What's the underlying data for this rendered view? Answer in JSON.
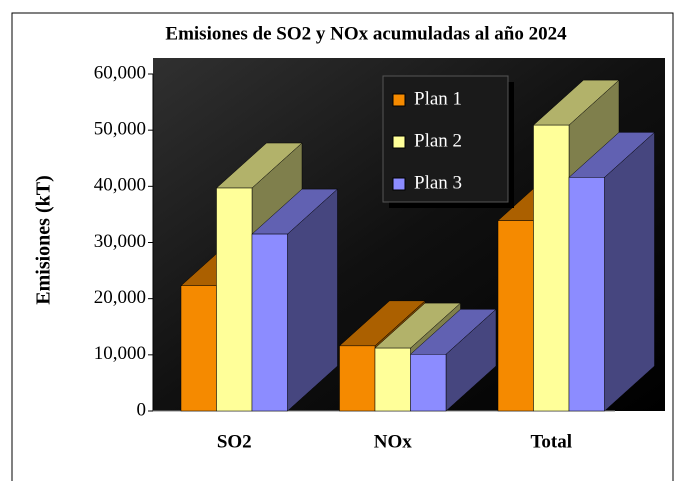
{
  "chart_data": {
    "type": "bar3d",
    "title": "Emisiones de SO2 y NOx acumuladas al año 2024",
    "y_label": "Emisiones (kT)",
    "categories": [
      "SO2",
      "NOx",
      "Total"
    ],
    "series": [
      {
        "name": "Plan 1",
        "color": "#f58a00",
        "values": [
          22300,
          11600,
          33900
        ]
      },
      {
        "name": "Plan 2",
        "color": "#ffff99",
        "values": [
          39700,
          11200,
          50900
        ]
      },
      {
        "name": "Plan 3",
        "color": "#8c8cff",
        "values": [
          31500,
          10100,
          41600
        ]
      }
    ],
    "ylim": [
      0,
      60000
    ],
    "yticks": [
      0,
      {
        "value": 10000,
        "label": "10,000"
      },
      {
        "value": 20000,
        "label": "20,000"
      },
      {
        "value": 30000,
        "label": "30,000"
      },
      {
        "value": 40000,
        "label": "40,000"
      },
      {
        "value": 50000,
        "label": "50,000"
      },
      {
        "value": 60000,
        "label": "60,000"
      }
    ]
  }
}
